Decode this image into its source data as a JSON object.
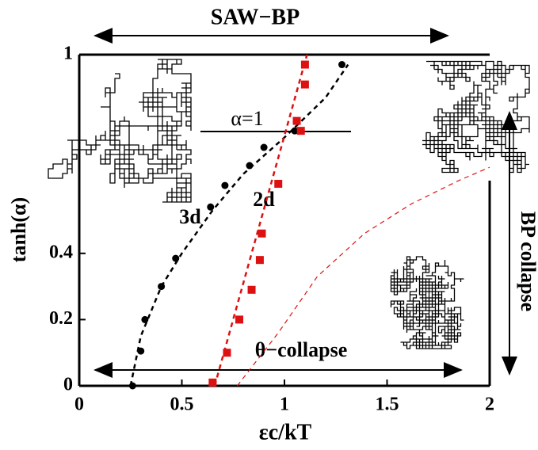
{
  "chart_data": {
    "type": "scatter",
    "xlabel": "εc/kT",
    "ylabel": "tanh(α)",
    "xlim": [
      0,
      2
    ],
    "ylim": [
      0,
      1
    ],
    "xticks": [
      0,
      0.5,
      1,
      1.5,
      2
    ],
    "yticks": [
      0,
      0.2,
      0.4,
      1
    ],
    "series": [
      {
        "name": "3d",
        "color": "#000000",
        "marker": "circle",
        "x": [
          0.26,
          0.3,
          0.32,
          0.4,
          0.47,
          0.64,
          0.71,
          0.83,
          0.9,
          1.05,
          1.28
        ],
        "values": [
          0,
          0.105,
          0.2,
          0.3,
          0.385,
          0.54,
          0.605,
          0.665,
          0.72,
          0.77,
          0.97
        ]
      },
      {
        "name": "2d",
        "color": "#dd1111",
        "marker": "square",
        "x": [
          0.65,
          0.72,
          0.78,
          0.84,
          0.88,
          0.89,
          0.97,
          1.06,
          1.08,
          1.1,
          1.1
        ],
        "values": [
          0.01,
          0.1,
          0.2,
          0.29,
          0.38,
          0.46,
          0.61,
          0.8,
          0.77,
          0.91,
          0.97
        ]
      }
    ],
    "fits": [
      {
        "color": "#000000",
        "width": 2.5,
        "x": [
          0.25,
          0.3,
          0.4,
          0.5,
          0.65,
          0.8,
          1.0,
          1.2,
          1.31
        ],
        "values": [
          0,
          0.15,
          0.3,
          0.4,
          0.53,
          0.64,
          0.75,
          0.87,
          0.97
        ]
      },
      {
        "color": "#dd1111",
        "width": 2.5,
        "x": [
          0.66,
          1.11
        ],
        "values": [
          0,
          1
        ]
      },
      {
        "color": "#dd1111",
        "width": 1.2,
        "x": [
          0.77,
          0.97,
          1.16,
          1.39,
          1.62,
          1.85,
          2
        ],
        "values": [
          0,
          0.16,
          0.33,
          0.46,
          0.55,
          0.62,
          0.66
        ]
      }
    ],
    "annotations": {
      "saw_bp": "SAW−BP",
      "alpha_one": "α=1",
      "theta_collapse": "θ−collapse",
      "bp_collapse": "BP collapse"
    }
  }
}
